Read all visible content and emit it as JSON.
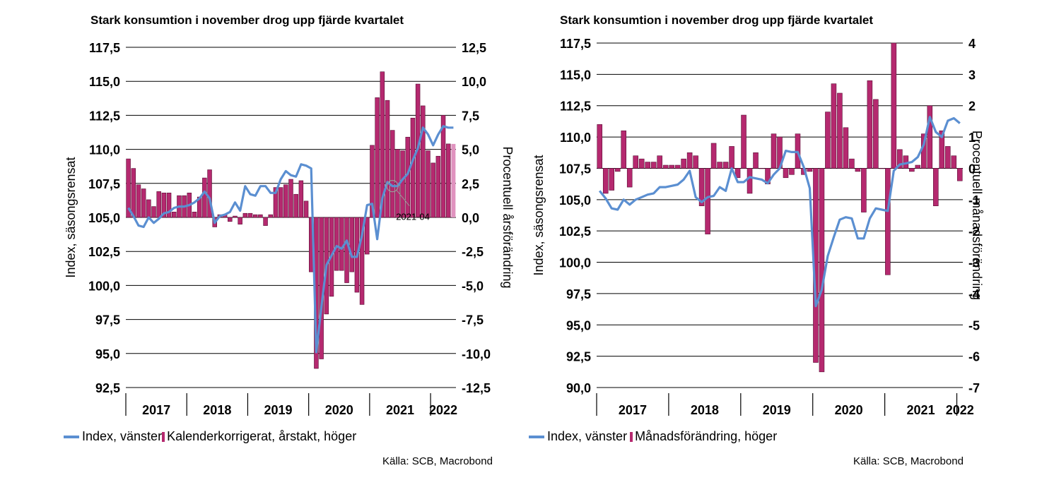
{
  "colors": {
    "index_line": "#5b8fd1",
    "bars": "#b5296f",
    "bars_highlight": "#e093bf",
    "gridline": "#000000"
  },
  "chart_data": [
    {
      "type": "bar",
      "title": "Stark konsumtion i november drog upp fjärde kvartalet",
      "ylabel_left": "Index, säsongsrensat",
      "ylabel_right": "Procentuell årsförändring",
      "ylim_left": [
        92.5,
        117.5
      ],
      "ylim_right": [
        -12.5,
        12.5
      ],
      "yticks_left": [
        "117,5",
        "115,0",
        "112,5",
        "110,0",
        "107,5",
        "105,0",
        "102,5",
        "100,0",
        "97,5",
        "95,0",
        "92,5"
      ],
      "yticks_right": [
        "12,5",
        "10,0",
        "7,5",
        "5,0",
        "2,5",
        "0,0",
        "-2,5",
        "-5,0",
        "-7,5",
        "-10,0",
        "-12,5"
      ],
      "xticks": [
        "2017",
        "2018",
        "2019",
        "2020",
        "2021",
        "2022"
      ],
      "grid": true,
      "legend_position": "bottom",
      "annotation": "2021-04",
      "annotation_index": 52,
      "series": [
        {
          "name": "Index, vänster",
          "type": "line",
          "axis": "left",
          "values": [
            105.7,
            105.1,
            104.4,
            104.3,
            105.0,
            104.6,
            104.9,
            105.3,
            105.4,
            105.7,
            105.8,
            105.8,
            105.9,
            106.1,
            106.4,
            106.9,
            106.4,
            104.6,
            105.1,
            105.2,
            105.4,
            106.1,
            105.5,
            107.3,
            106.7,
            106.6,
            107.3,
            107.3,
            106.8,
            106.8,
            107.8,
            108.4,
            108.1,
            108.0,
            108.9,
            108.8,
            108.6,
            95.1,
            98.4,
            101.5,
            102.2,
            102.9,
            102.7,
            103.3,
            102.1,
            102.1,
            103.7,
            105.9,
            106.0,
            103.4,
            106.4,
            107.6,
            107.3,
            107.3,
            107.8,
            108.2,
            109.2,
            110.1,
            111.6,
            111.1,
            110.3,
            111.1,
            111.7,
            111.6,
            111.6
          ],
          "years": [
            "2017",
            "2017",
            "2017",
            "2017",
            "2017",
            "2017",
            "2017",
            "2017",
            "2017",
            "2017",
            "2017",
            "2017",
            "2018",
            "2018",
            "2018",
            "2018",
            "2018",
            "2018",
            "2018",
            "2018",
            "2018",
            "2018",
            "2018",
            "2018",
            "2019",
            "2019",
            "2019",
            "2019",
            "2019",
            "2019",
            "2019",
            "2019",
            "2019",
            "2019",
            "2019",
            "2019",
            "2020",
            "2020",
            "2020",
            "2020",
            "2020",
            "2020",
            "2020",
            "2020",
            "2020",
            "2020",
            "2020",
            "2020",
            "2021",
            "2021",
            "2021",
            "2021",
            "2021",
            "2021",
            "2021",
            "2021",
            "2021",
            "2021",
            "2021",
            "2021",
            "2022",
            "2022",
            "2022",
            "2022",
            "2022"
          ]
        },
        {
          "name": "Kalenderkorrigerat, årstakt, höger",
          "type": "bar",
          "axis": "right",
          "values": [
            4.3,
            3.6,
            2.4,
            2.1,
            1.3,
            0.8,
            1.9,
            1.8,
            1.8,
            0.4,
            1.6,
            1.6,
            1.8,
            0.4,
            1.5,
            2.9,
            3.5,
            -0.7,
            0.2,
            0.2,
            -0.3,
            0.1,
            -0.5,
            0.3,
            0.3,
            0.2,
            0.2,
            -0.6,
            0.2,
            2.2,
            2.2,
            2.4,
            2.8,
            1.7,
            2.7,
            1.2,
            -4.0,
            -11.1,
            -10.4,
            -7.1,
            -5.8,
            -3.9,
            -3.9,
            -4.8,
            -4.0,
            -5.5,
            -6.4,
            -2.7,
            5.3,
            8.8,
            10.7,
            8.6,
            6.4,
            5.0,
            4.9,
            5.9,
            7.3,
            9.8,
            8.2,
            4.9,
            4.0,
            4.5,
            7.5,
            5.4,
            5.4
          ],
          "highlight_last": true
        }
      ],
      "source": "Källa: SCB, Macrobond"
    },
    {
      "type": "bar",
      "title": "Stark konsumtion i november drog upp fjärde kvartalet",
      "ylabel_left": "Index, säsongsrensat",
      "ylabel_right": "Procentuell månadsförändring",
      "ylim_left": [
        90.0,
        117.5
      ],
      "ylim_right": [
        -7,
        4
      ],
      "yticks_left": [
        "117,5",
        "115,0",
        "112,5",
        "110,0",
        "107,5",
        "105,0",
        "102,5",
        "100,0",
        "97,5",
        "95,0",
        "92,5",
        "90,0"
      ],
      "yticks_right": [
        "4",
        "3",
        "2",
        "1",
        "0",
        "-1",
        "-2",
        "-3",
        "-4",
        "-5",
        "-6",
        "-7"
      ],
      "xticks": [
        "2017",
        "2018",
        "2019",
        "2020",
        "2021",
        "2022"
      ],
      "grid": true,
      "legend_position": "bottom",
      "series": [
        {
          "name": "Index, vänster",
          "type": "line",
          "axis": "left",
          "values": [
            105.7,
            105.1,
            104.3,
            104.2,
            105.0,
            104.6,
            105.0,
            105.2,
            105.4,
            105.5,
            106.0,
            106.0,
            106.1,
            106.2,
            106.6,
            107.3,
            105.2,
            104.8,
            105.2,
            105.3,
            106.0,
            105.7,
            107.5,
            106.4,
            106.4,
            106.8,
            106.7,
            106.6,
            106.3,
            107.0,
            107.5,
            108.9,
            108.8,
            108.8,
            107.6,
            105.9,
            96.5,
            97.8,
            100.5,
            102.0,
            103.4,
            103.6,
            103.5,
            101.9,
            101.9,
            103.5,
            104.3,
            104.2,
            104.1,
            107.3,
            107.8,
            107.9,
            108.0,
            108.4,
            109.4,
            111.6,
            110.4,
            110.0,
            111.3,
            111.5,
            111.1
          ],
          "years": [
            "2017",
            "2017",
            "2017",
            "2017",
            "2017",
            "2017",
            "2017",
            "2017",
            "2017",
            "2017",
            "2017",
            "2017",
            "2018",
            "2018",
            "2018",
            "2018",
            "2018",
            "2018",
            "2018",
            "2018",
            "2018",
            "2018",
            "2018",
            "2018",
            "2019",
            "2019",
            "2019",
            "2019",
            "2019",
            "2019",
            "2019",
            "2019",
            "2019",
            "2019",
            "2019",
            "2019",
            "2020",
            "2020",
            "2020",
            "2020",
            "2020",
            "2020",
            "2020",
            "2020",
            "2020",
            "2020",
            "2020",
            "2020",
            "2021",
            "2021",
            "2021",
            "2021",
            "2021",
            "2021",
            "2021",
            "2021",
            "2021",
            "2021",
            "2021",
            "2021",
            "2022"
          ]
        },
        {
          "name": "Månadsförändring, höger",
          "type": "bar",
          "axis": "right",
          "values": [
            1.4,
            -0.8,
            -0.7,
            -0.1,
            1.2,
            -0.6,
            0.4,
            0.3,
            0.2,
            0.2,
            0.4,
            0.1,
            0.1,
            0.1,
            0.3,
            0.5,
            0.4,
            -1.2,
            -2.1,
            0.8,
            0.2,
            0.2,
            0.7,
            -0.3,
            1.7,
            -0.8,
            0.5,
            0.0,
            -0.5,
            1.1,
            1.0,
            -0.3,
            -0.2,
            1.1,
            -0.2,
            -0.1,
            -6.2,
            -6.5,
            1.8,
            2.7,
            2.4,
            1.3,
            0.3,
            -0.1,
            -1.4,
            2.8,
            2.2,
            0.0,
            -3.4,
            4.0,
            0.6,
            0.4,
            -0.1,
            0.1,
            1.1,
            2.0,
            -1.2,
            1.2,
            0.7,
            0.4,
            -0.4
          ],
          "highlight_last": false
        }
      ],
      "source": "Källa: SCB, Macrobond"
    }
  ]
}
